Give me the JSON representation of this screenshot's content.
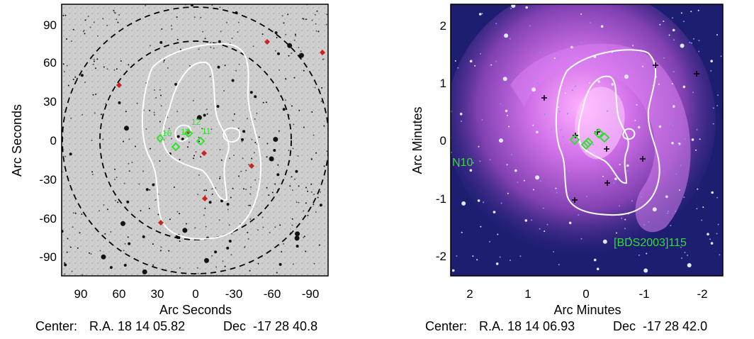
{
  "left_panel": {
    "x_axis_label": "Arc Seconds",
    "y_axis_label": "Arc Seconds",
    "x_ticks": [
      "90",
      "60",
      "30",
      "0",
      "-30",
      "-60",
      "-90"
    ],
    "y_ticks": [
      "90",
      "60",
      "30",
      "0",
      "-30",
      "-60",
      "-90"
    ],
    "center_label": "Center:",
    "center_ra": "R.A. 18 14 05.82",
    "center_dec": "Dec  -17 28 40.8",
    "source_labels": [
      "16",
      "13",
      "12",
      "11"
    ]
  },
  "right_panel": {
    "x_axis_label": "Arc Minutes",
    "y_axis_label": "Arc Minutes",
    "x_ticks": [
      "2",
      "1",
      "0",
      "-1",
      "-2"
    ],
    "y_ticks": [
      "2",
      "1",
      "0",
      "-1",
      "-2"
    ],
    "center_label": "Center:",
    "center_ra": "R.A. 18 14 06.93",
    "center_dec": "Dec  -17 28 42.0",
    "label_n10": "N10",
    "label_bds": "[BDS2003]115"
  },
  "colors": {
    "source_green": "#33dd33",
    "marker_red": "#cc2222",
    "contour_white": "#ffffff",
    "circle_black": "#000000",
    "ir_background": "#1a1a66",
    "ir_pink": "#c066e0"
  }
}
